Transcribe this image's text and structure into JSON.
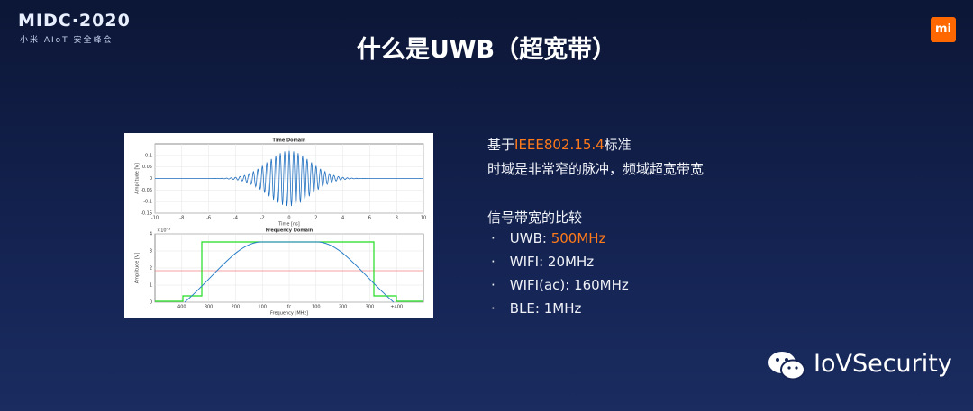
{
  "header": {
    "logo": "MIDC·2020",
    "logo_sub": "小米 AIoT 安全峰会",
    "brand_mark": "mi",
    "title": "什么是UWB（超宽带）"
  },
  "figure": {
    "time_domain": {
      "title": "Time Domain",
      "xlabel": "Time [ns]",
      "ylabel": "Amplitude [V]",
      "xlim": [
        -10,
        10
      ],
      "xticks": [
        -10,
        -8,
        -6,
        -4,
        -2,
        0,
        2,
        4,
        6,
        8,
        10
      ],
      "ylim": [
        -0.15,
        0.15
      ],
      "yticks": [
        -0.15,
        -0.1,
        -0.05,
        0,
        0.05,
        0.1
      ]
    },
    "frequency_domain": {
      "title": "Frequency Domain",
      "xlabel": "Frequency [MHz]",
      "ylabel": "Amplitude [V]",
      "y_exponent": "×10⁻³",
      "ylim": [
        0,
        4
      ],
      "yticks": [
        0,
        1,
        2,
        3,
        4
      ],
      "xtick_labels": [
        "400",
        "300",
        "200",
        "100",
        "fc",
        "100",
        "200",
        "300",
        "+400"
      ]
    }
  },
  "body": {
    "standard": {
      "prefix": "基于",
      "highlight": "IEEE802.15.4",
      "suffix": "标准"
    },
    "description": "时域是非常窄的脉冲，频域超宽带宽",
    "comparison_title": "信号带宽的比较",
    "items": [
      {
        "label": "UWB: ",
        "value": "500MHz"
      },
      {
        "label": "WIFI: 20MHz"
      },
      {
        "label": "WIFI(ac): 160MHz"
      },
      {
        "label": "BLE: 1MHz"
      }
    ]
  },
  "watermark": "IoVSecurity"
}
